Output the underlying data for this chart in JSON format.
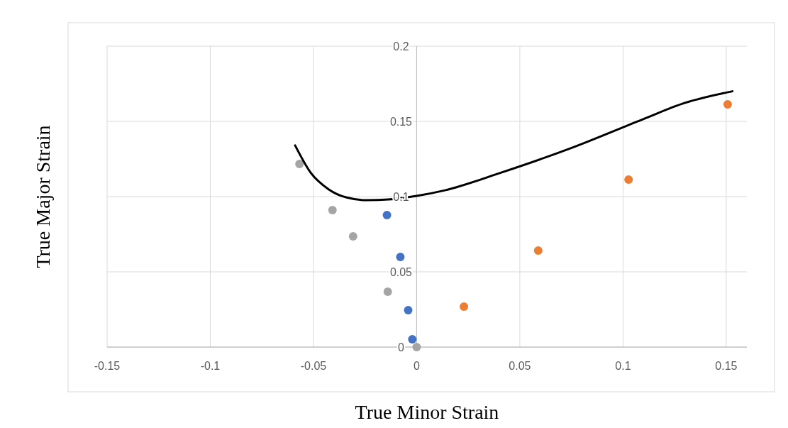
{
  "chart_data": {
    "type": "scatter",
    "xlabel": "True Minor Strain",
    "ylabel": "True Major Strain",
    "xlim": [
      -0.15,
      0.16
    ],
    "ylim": [
      0,
      0.2
    ],
    "xticks": [
      -0.15,
      -0.1,
      -0.05,
      0,
      0.05,
      0.1,
      0.15
    ],
    "yticks": [
      0,
      0.05,
      0.1,
      0.15,
      0.2
    ],
    "grid": true,
    "marker": "circle",
    "series": [
      {
        "color": "#a5a5a5",
        "x": [
          -0.0568,
          -0.0408,
          -0.0308,
          -0.014,
          0
        ],
        "values": [
          0.1217,
          0.091,
          0.0736,
          0.0368,
          0
        ]
      },
      {
        "color": "#4472c4",
        "x": [
          -0.0144,
          -0.0079,
          -0.0041,
          -0.0021
        ],
        "values": [
          0.0877,
          0.0599,
          0.0245,
          0.0052
        ]
      },
      {
        "color": "#ed7d31",
        "x": [
          0.0229,
          0.0589,
          0.1027,
          0.1507
        ],
        "values": [
          0.0269,
          0.0642,
          0.1113,
          0.1613
        ]
      },
      {
        "type": "line",
        "marker": "none",
        "color": "#000000",
        "x": [
          -0.0589,
          -0.0514,
          -0.0428,
          -0.0342,
          -0.024,
          -0.0137,
          0,
          0.0137,
          0.041,
          0.0753,
          0.1096,
          0.13,
          0.153
        ],
        "values": [
          0.134,
          0.116,
          0.105,
          0.0995,
          0.0976,
          0.0981,
          0.1005,
          0.1042,
          0.116,
          0.1325,
          0.1514,
          0.1623,
          0.17
        ]
      }
    ]
  }
}
